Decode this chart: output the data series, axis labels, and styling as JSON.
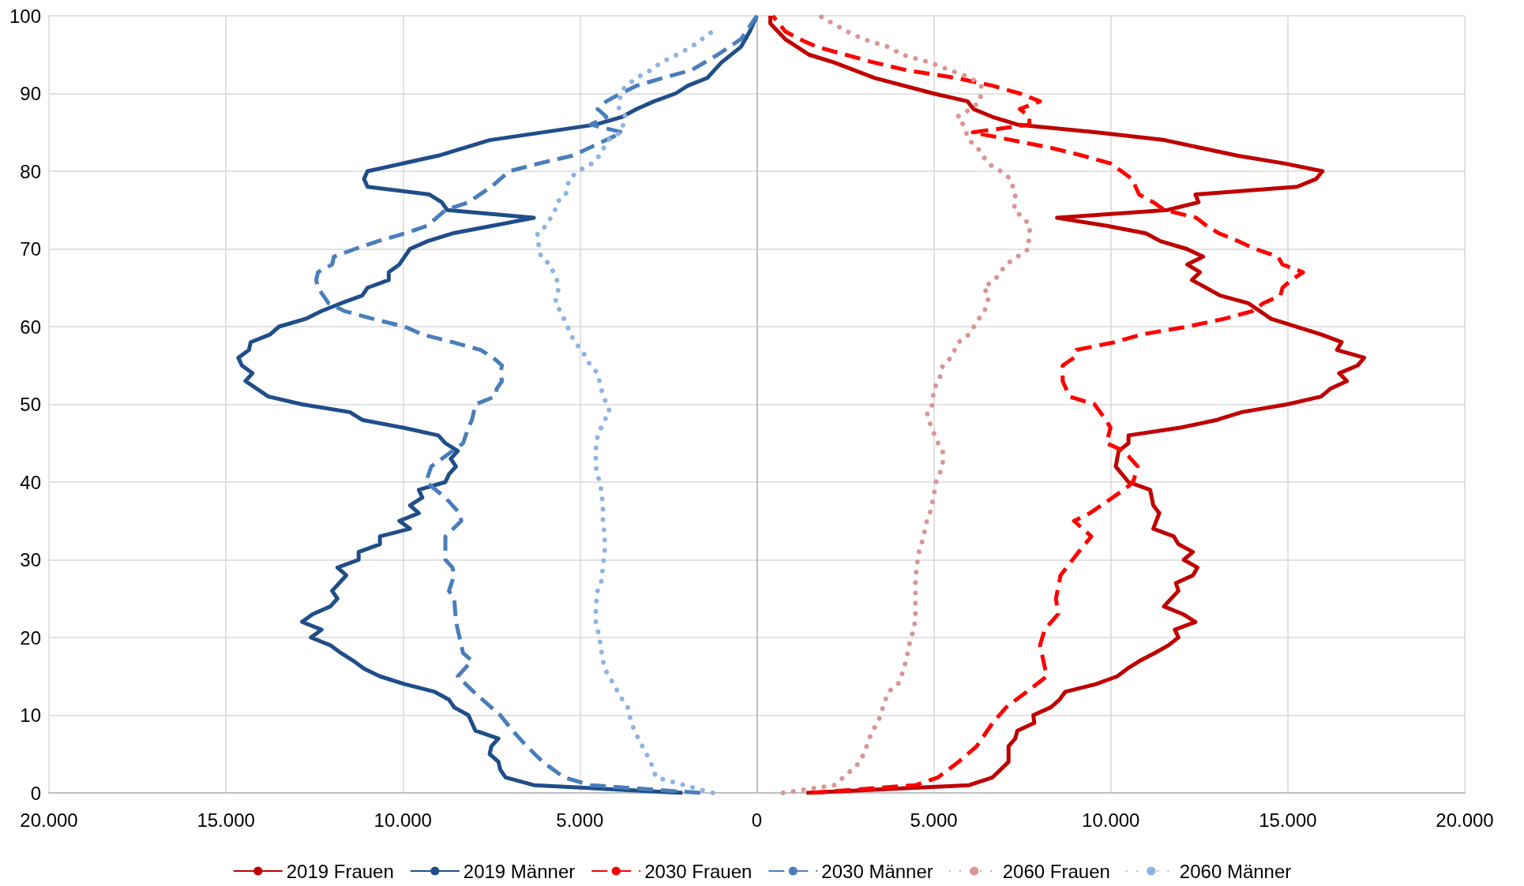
{
  "chart_data": {
    "type": "line",
    "xlim": [
      -20000,
      20000
    ],
    "xticks": [
      {
        "value": -20000,
        "label": "20.000"
      },
      {
        "value": -15000,
        "label": "15.000"
      },
      {
        "value": -10000,
        "label": "10.000"
      },
      {
        "value": -5000,
        "label": "5.000"
      },
      0,
      {
        "value": 5000,
        "label": "5.000"
      },
      {
        "value": 10000,
        "label": "10.000"
      },
      {
        "value": 15000,
        "label": "15.000"
      },
      {
        "value": 20000,
        "label": "20.000"
      }
    ],
    "ylim": [
      0,
      100
    ],
    "yticks": [
      0,
      10,
      20,
      30,
      40,
      50,
      60,
      70,
      80,
      90,
      100
    ],
    "grid": true,
    "legend": "bottom",
    "marker": "none",
    "series": [
      {
        "name": "2019 Frauen",
        "color": "#c00000",
        "line_style": "solid",
        "x": [
          1400,
          6000,
          6660,
          7110,
          7110,
          7300,
          7360,
          7840,
          7810,
          8300,
          8550,
          8710,
          9580,
          10180,
          10470,
          10820,
          11240,
          11630,
          11910,
          11810,
          12390,
          12040,
          11500,
          11910,
          11840,
          12320,
          12450,
          12060,
          12320,
          11910,
          11780,
          11200,
          11370,
          11200,
          11110,
          10500,
          10140,
          10220,
          10500,
          10500,
          11970,
          13000,
          13700,
          14980,
          15940,
          16200,
          16670,
          16450,
          16970,
          17160,
          16390,
          16520,
          15940,
          14530,
          13890,
          13090,
          12290,
          12520,
          12160,
          12610,
          12140,
          11400,
          10990,
          9860,
          8480,
          11590,
          12480,
          12390,
          15260,
          15800,
          15980,
          14900,
          13570,
          12550,
          11520,
          9600,
          7360,
          6650,
          6120,
          5950,
          4990,
          3330,
          2180,
          1470,
          800,
          380,
          380
        ],
        "values": [
          0,
          1,
          2,
          4,
          6,
          7,
          8,
          9,
          10,
          11,
          12,
          13,
          14,
          15,
          16,
          17,
          18,
          19,
          20,
          21,
          22,
          23,
          24,
          26,
          27,
          28,
          29,
          30,
          31,
          32,
          33,
          34,
          36,
          37,
          39,
          40,
          42,
          44,
          45,
          46,
          47,
          48,
          49,
          50,
          51,
          52,
          53,
          54,
          55,
          56,
          57,
          58,
          59,
          61,
          63,
          64,
          66,
          67,
          68,
          69,
          70,
          71,
          72,
          73,
          74,
          75,
          76,
          77,
          78,
          79,
          80,
          81,
          82,
          83,
          84,
          85,
          86,
          87,
          88,
          89,
          90,
          92,
          94,
          95,
          97,
          99,
          100
        ]
      },
      {
        "name": "2019 Männer",
        "color": "#1f4e89",
        "line_style": "solid",
        "x": [
          -2100,
          -6300,
          -7100,
          -7250,
          -7300,
          -7550,
          -7500,
          -7300,
          -7950,
          -8150,
          -8550,
          -8700,
          -9100,
          -9950,
          -10650,
          -11100,
          -11400,
          -11750,
          -12050,
          -12600,
          -12300,
          -12850,
          -12550,
          -12050,
          -11850,
          -12000,
          -11600,
          -11850,
          -11250,
          -11250,
          -10650,
          -10650,
          -9800,
          -10100,
          -9550,
          -9800,
          -9450,
          -9550,
          -8800,
          -8700,
          -8500,
          -8650,
          -8450,
          -8800,
          -9000,
          -10000,
          -11150,
          -11500,
          -12850,
          -13800,
          -14450,
          -14250,
          -14550,
          -14650,
          -14350,
          -14300,
          -13750,
          -13500,
          -12750,
          -12300,
          -11750,
          -11150,
          -11000,
          -10400,
          -10400,
          -10100,
          -9950,
          -9800,
          -9300,
          -8600,
          -7450,
          -6300,
          -8750,
          -8900,
          -9250,
          -11000,
          -11100,
          -11000,
          -9000,
          -7550,
          -4550,
          -3800,
          -3400,
          -2900,
          -2300,
          -1950,
          -1400,
          -1000,
          -450,
          -200,
          0
        ],
        "values": [
          0,
          1,
          2,
          3,
          4,
          5,
          6,
          7,
          8,
          10,
          11,
          12,
          13,
          14,
          15,
          16,
          17,
          18,
          19,
          20,
          21,
          22,
          23,
          24,
          25,
          26,
          28,
          29,
          30,
          31,
          32,
          33,
          34,
          35,
          36,
          37,
          38,
          39,
          40,
          41,
          42,
          43,
          44,
          45,
          46,
          47,
          48,
          49,
          50,
          51,
          53,
          54,
          55,
          56,
          57,
          58,
          59,
          60,
          61,
          62,
          63,
          64,
          65,
          66,
          67,
          68,
          69,
          70,
          71,
          72,
          73,
          74,
          75,
          76,
          77,
          78,
          79,
          80,
          82,
          84,
          86,
          87,
          88,
          89,
          90,
          91,
          92,
          94,
          96,
          98,
          100
        ]
      },
      {
        "name": "2030 Frauen",
        "color": "#ff0000",
        "line_style": "dashed",
        "x": [
          1540,
          4480,
          5120,
          5700,
          6210,
          6660,
          7040,
          7620,
          8190,
          8000,
          8130,
          8510,
          8450,
          8580,
          9090,
          9450,
          8960,
          9410,
          9730,
          10370,
          10630,
          10760,
          10370,
          9880,
          9990,
          9860,
          9540,
          8830,
          8640,
          8640,
          8960,
          9030,
          10110,
          10880,
          12160,
          13200,
          14000,
          14300,
          14790,
          14850,
          15100,
          15430,
          14850,
          14720,
          14080,
          13600,
          13060,
          12700,
          12420,
          11520,
          11200,
          10800,
          10700,
          10600,
          10300,
          9990,
          9200,
          8320,
          7200,
          6100,
          7700,
          7700,
          7430,
          8000,
          7430,
          6660,
          5630,
          4230,
          3300,
          2500,
          1700,
          1200,
          800,
          450
        ],
        "values": [
          0,
          1,
          2,
          4,
          6,
          9,
          11,
          13,
          15,
          19,
          21,
          23,
          25,
          28,
          31,
          33,
          35,
          36,
          37,
          39,
          40,
          42,
          44,
          45,
          47,
          48,
          50,
          51,
          53,
          55,
          56,
          57,
          58,
          59,
          60,
          61,
          62,
          63,
          64,
          65,
          66,
          67,
          68,
          69,
          70,
          71,
          72,
          73,
          74,
          75,
          76,
          77,
          78,
          79,
          80,
          81,
          82,
          83,
          84,
          85,
          86,
          87,
          88,
          89,
          90,
          91,
          92,
          93,
          94,
          95,
          96,
          97,
          98,
          100
        ]
      },
      {
        "name": "2030 Männer",
        "color": "#4a7ebb",
        "line_style": "dashed",
        "x": [
          -1600,
          -4700,
          -5450,
          -6050,
          -6500,
          -6900,
          -7250,
          -7750,
          -8000,
          -8450,
          -8050,
          -8300,
          -8400,
          -8500,
          -8550,
          -8700,
          -8550,
          -8600,
          -8800,
          -8800,
          -8350,
          -8400,
          -8800,
          -9350,
          -9200,
          -8900,
          -8600,
          -8300,
          -8150,
          -8050,
          -7950,
          -7400,
          -7350,
          -7200,
          -7250,
          -7200,
          -7450,
          -7800,
          -8600,
          -9450,
          -9950,
          -10850,
          -11650,
          -12100,
          -12250,
          -12400,
          -12450,
          -12400,
          -12000,
          -11950,
          -11350,
          -10700,
          -9950,
          -9300,
          -8800,
          -8150,
          -7500,
          -7000,
          -6150,
          -5200,
          -3800,
          -4700,
          -4250,
          -4500,
          -4250,
          -3850,
          -3400,
          -2650,
          -1850,
          -1100,
          -450,
          -150,
          0
        ],
        "values": [
          0,
          1,
          2,
          4,
          6,
          8,
          10,
          12,
          13,
          15,
          17,
          18,
          20,
          22,
          25,
          26,
          28,
          29,
          30,
          33,
          35,
          36,
          38,
          40,
          42,
          43,
          44,
          45,
          47,
          48,
          50,
          51,
          52,
          53,
          54,
          55,
          56,
          57,
          58,
          59,
          60,
          61,
          62,
          63,
          64,
          65,
          66,
          67,
          68,
          69,
          70,
          71,
          72,
          73,
          75,
          76,
          78,
          80,
          81,
          82,
          85,
          86,
          87,
          88,
          89,
          90,
          91,
          92,
          93,
          95,
          97,
          99,
          100
        ]
      },
      {
        "name": "2060 Frauen",
        "color": "#d99694",
        "line_style": "dotted",
        "x": [
          740,
          2200,
          2690,
          2920,
          3100,
          3260,
          3420,
          3560,
          3710,
          3990,
          4160,
          4260,
          4350,
          4440,
          4480,
          4480,
          4480,
          4510,
          4580,
          4710,
          4800,
          4890,
          4990,
          5060,
          5250,
          5250,
          5120,
          4930,
          4800,
          4970,
          4990,
          5150,
          5250,
          5480,
          5700,
          5990,
          6270,
          6430,
          6570,
          6400,
          6720,
          7040,
          7360,
          7680,
          7680,
          7720,
          7530,
          7270,
          7300,
          7170,
          6890,
          6530,
          6240,
          5990,
          5830,
          5660,
          6040,
          6310,
          6340,
          6040,
          5450,
          4890,
          4100,
          3710,
          3000,
          2540,
          2150,
          1770
        ],
        "values": [
          0,
          1,
          3,
          4,
          6,
          8,
          9,
          11,
          13,
          14,
          16,
          18,
          20,
          21,
          23,
          25,
          27,
          29,
          31,
          33,
          35,
          36,
          38,
          40,
          42,
          44,
          45,
          47,
          49,
          50,
          52,
          53,
          55,
          56,
          58,
          59,
          61,
          62,
          64,
          65,
          66,
          68,
          69,
          70,
          71,
          73,
          74,
          75,
          77,
          79,
          80,
          81,
          83,
          84,
          86,
          87,
          88,
          89,
          91,
          92,
          93,
          94,
          95,
          96,
          97,
          98,
          99,
          100
        ]
      },
      {
        "name": "2060 Männer",
        "color": "#8db4e2",
        "line_style": "dotted",
        "x": [
          -1250,
          -2050,
          -2850,
          -3000,
          -3350,
          -3550,
          -3650,
          -3800,
          -4050,
          -4300,
          -4350,
          -4450,
          -4550,
          -4550,
          -4500,
          -4400,
          -4350,
          -4300,
          -4300,
          -4350,
          -4350,
          -4400,
          -4450,
          -4550,
          -4550,
          -4500,
          -4300,
          -4150,
          -4250,
          -4400,
          -4500,
          -4700,
          -4950,
          -5150,
          -5350,
          -5550,
          -5700,
          -5600,
          -5650,
          -5850,
          -6100,
          -6150,
          -6200,
          -5950,
          -5700,
          -5650,
          -5400,
          -5300,
          -5050,
          -4650,
          -4450,
          -4200,
          -3850,
          -3700,
          -3900,
          -3850,
          -3700,
          -3400,
          -3000,
          -2700,
          -2250,
          -1850,
          -1550,
          -1250
        ],
        "values": [
          0,
          1,
          2,
          4,
          7,
          9,
          11,
          12,
          14,
          16,
          17,
          20,
          22,
          24,
          26,
          27,
          29,
          31,
          33,
          35,
          37,
          39,
          40,
          42,
          44,
          46,
          48,
          49,
          50,
          52,
          54,
          55,
          57,
          58,
          60,
          62,
          63,
          65,
          66,
          68,
          69,
          70,
          72,
          73,
          75,
          76,
          77,
          79,
          80,
          81,
          82,
          84,
          85,
          87,
          88,
          90,
          91,
          92,
          93,
          94,
          95,
          96,
          97,
          98
        ]
      }
    ]
  }
}
